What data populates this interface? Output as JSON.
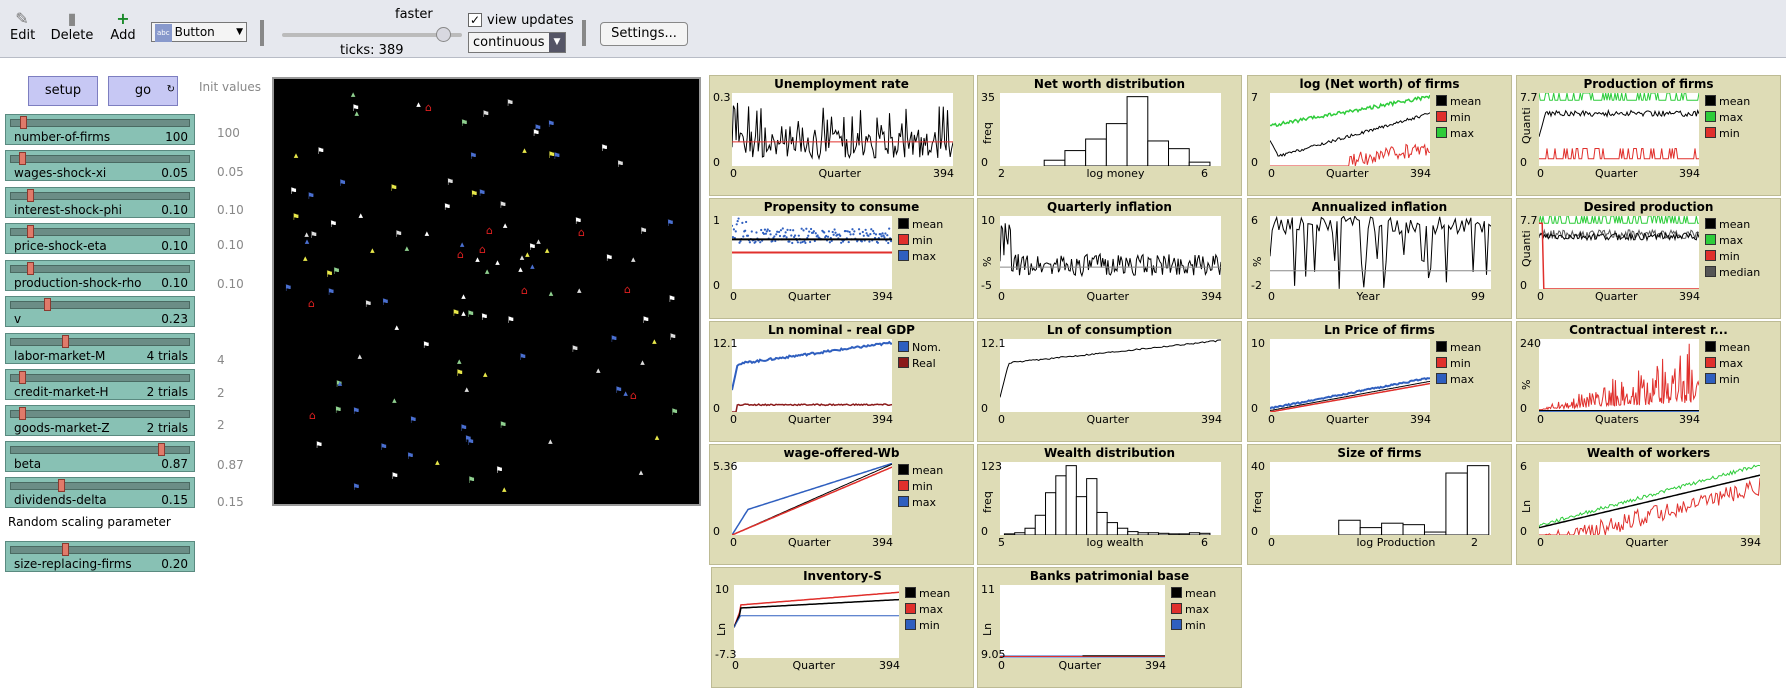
{
  "toolbar": {
    "edit_label": "Edit",
    "delete_label": "Delete",
    "add_label": "Add",
    "widget_type": "Button",
    "widget_type_icon_text": "abc",
    "speed_label": "faster",
    "ticks_label": "ticks: 389",
    "view_updates_label": "view updates",
    "view_updates_checked": "✓",
    "update_mode": "continuous",
    "settings_label": "Settings..."
  },
  "controls": {
    "setup_label": "setup",
    "go_label": "go",
    "init_values_header": "Init values",
    "random_scaling_label": "Random scaling parameter"
  },
  "sliders": [
    {
      "name": "number-of-firms",
      "value": "100",
      "init": "100",
      "pos": 0.06
    },
    {
      "name": "wages-shock-xi",
      "value": "0.05",
      "init": "0.05",
      "pos": 0.05
    },
    {
      "name": "interest-shock-phi",
      "value": "0.10",
      "init": "0.10",
      "pos": 0.1
    },
    {
      "name": "price-shock-eta",
      "value": "0.10",
      "init": "0.10",
      "pos": 0.1
    },
    {
      "name": "production-shock-rho",
      "value": "0.10",
      "init": "0.10",
      "pos": 0.1
    },
    {
      "name": "v",
      "value": "0.23",
      "init": "",
      "pos": 0.2
    },
    {
      "name": "labor-market-M",
      "value": "4 trials",
      "init": "4",
      "pos": 0.3
    },
    {
      "name": "credit-market-H",
      "value": "2 trials",
      "init": "2",
      "pos": 0.05
    },
    {
      "name": "goods-market-Z",
      "value": "2 trials",
      "init": "2",
      "pos": 0.05
    },
    {
      "name": "beta",
      "value": "0.87",
      "init": "0.87",
      "pos": 0.86
    },
    {
      "name": "dividends-delta",
      "value": "0.15",
      "init": "0.15",
      "pos": 0.28
    },
    {
      "name": "size-replacing-firms",
      "value": "0.20",
      "init": "",
      "pos": 0.3
    }
  ],
  "plots": [
    {
      "title": "Unemployment rate",
      "ylabel": "",
      "ymax": "0.3",
      "ymin": "0",
      "xmin": "0",
      "xlabel": "Quarter",
      "xmax": "394",
      "legend": [],
      "kind": "unemp"
    },
    {
      "title": "Net worth distribution",
      "ylabel": "freq",
      "ymax": "35",
      "ymin": "0",
      "xmin": "2",
      "xlabel": "log money",
      "xmax": "6",
      "legend": [],
      "kind": "hist1",
      "hist_values": [
        3,
        8,
        14,
        22,
        36,
        13,
        9,
        2
      ],
      "hist_max": 36
    },
    {
      "title": "log (Net worth) of firms",
      "ylabel": "",
      "ymax": "7",
      "ymin": "0",
      "xmin": "0",
      "xlabel": "Quarter",
      "xmax": "394",
      "legend": [
        {
          "name": "mean",
          "color": "#000000"
        },
        {
          "name": "min",
          "color": "#e0302c"
        },
        {
          "name": "max",
          "color": "#2ecc3a"
        }
      ],
      "kind": "networth"
    },
    {
      "title": "Production of firms",
      "ylabel": "Quanti",
      "ymax": "7.7",
      "ymin": "0",
      "xmin": "0",
      "xlabel": "Quarter",
      "xmax": "394",
      "legend": [
        {
          "name": "mean",
          "color": "#000000"
        },
        {
          "name": "max",
          "color": "#2ecc3a"
        },
        {
          "name": "min",
          "color": "#e0302c"
        }
      ],
      "kind": "production"
    },
    {
      "title": "Propensity to consume",
      "ylabel": "",
      "ymax": "1",
      "ymin": "0",
      "xmin": "0",
      "xlabel": "Quarter",
      "xmax": "394",
      "legend": [
        {
          "name": "mean",
          "color": "#000000"
        },
        {
          "name": "min",
          "color": "#e0302c"
        },
        {
          "name": "max",
          "color": "#2f5fbf"
        }
      ],
      "kind": "propensity"
    },
    {
      "title": "Quarterly inflation",
      "ylabel": "%",
      "ymax": "10",
      "ymin": "-5",
      "xmin": "0",
      "xlabel": "Quarter",
      "xmax": "394",
      "legend": [],
      "kind": "qinfl"
    },
    {
      "title": "Annualized inflation",
      "ylabel": "%",
      "ymax": "6",
      "ymin": "-2",
      "xmin": "0",
      "xlabel": "Year",
      "xmax": "99",
      "legend": [],
      "kind": "ainfl"
    },
    {
      "title": "Desired production",
      "ylabel": "Quanti",
      "ymax": "7.7",
      "ymin": "0",
      "xmin": "0",
      "xlabel": "Quarter",
      "xmax": "394",
      "legend": [
        {
          "name": "mean",
          "color": "#000000"
        },
        {
          "name": "max",
          "color": "#2ecc3a"
        },
        {
          "name": "min",
          "color": "#e0302c"
        },
        {
          "name": "median",
          "color": "#555555"
        }
      ],
      "kind": "desired"
    },
    {
      "title": "Ln nominal - real GDP",
      "ylabel": "",
      "ymax": "12.1",
      "ymin": "0",
      "xmin": "0",
      "xlabel": "Quarter",
      "xmax": "394",
      "legend": [
        {
          "name": "Nom.",
          "color": "#2f5fbf"
        },
        {
          "name": "Real",
          "color": "#8b1a1a"
        }
      ],
      "kind": "gdp"
    },
    {
      "title": "Ln of consumption",
      "ylabel": "",
      "ymax": "12.1",
      "ymin": "0",
      "xmin": "0",
      "xlabel": "Quarter",
      "xmax": "394",
      "legend": [],
      "kind": "consumption"
    },
    {
      "title": "Ln Price of firms",
      "ylabel": "",
      "ymax": "10",
      "ymin": "0",
      "xmin": "0",
      "xlabel": "Quarter",
      "xmax": "394",
      "legend": [
        {
          "name": "mean",
          "color": "#000000"
        },
        {
          "name": "min",
          "color": "#e0302c"
        },
        {
          "name": "max",
          "color": "#2f5fbf"
        }
      ],
      "kind": "price"
    },
    {
      "title": "Contractual interest r...",
      "ylabel": "%",
      "ymax": "240",
      "ymin": "0",
      "xmin": "0",
      "xlabel": "Quaters",
      "xmax": "394",
      "legend": [
        {
          "name": "mean",
          "color": "#000000"
        },
        {
          "name": "max",
          "color": "#e0302c"
        },
        {
          "name": "min",
          "color": "#2f5fbf"
        }
      ],
      "kind": "interest"
    },
    {
      "title": "wage-offered-Wb",
      "ylabel": "",
      "ymax": "5.36",
      "ymin": "0",
      "xmin": "0",
      "xlabel": "Quarter",
      "xmax": "394",
      "legend": [
        {
          "name": "mean",
          "color": "#000000"
        },
        {
          "name": "min",
          "color": "#e0302c"
        },
        {
          "name": "max",
          "color": "#2f5fbf"
        }
      ],
      "kind": "wage"
    },
    {
      "title": "Wealth distribution",
      "ylabel": "freq",
      "ymax": "123",
      "ymin": "0",
      "xmin": "5",
      "xlabel": "log wealth",
      "xmax": "6",
      "legend": [],
      "kind": "hist2",
      "hist_values": [
        2,
        4,
        12,
        35,
        75,
        105,
        123,
        68,
        100,
        40,
        22,
        12,
        6,
        4,
        4,
        3,
        2,
        2,
        4,
        3
      ],
      "hist_max": 123
    },
    {
      "title": "Size of firms",
      "ylabel": "freq",
      "ymax": "40",
      "ymin": "0",
      "xmin": "0",
      "xlabel": "log Production",
      "xmax": "2",
      "legend": [],
      "kind": "hist3",
      "hist_values": [
        0,
        0,
        0,
        10,
        5,
        8,
        7,
        2,
        42,
        47
      ],
      "hist_max": 47
    },
    {
      "title": "Wealth of workers",
      "ylabel": "Ln",
      "ymax": "6",
      "ymin": "0",
      "xmin": "0",
      "xlabel": "Quarter",
      "xmax": "394",
      "legend": [],
      "kind": "workers"
    },
    {
      "title": "Inventory-S",
      "ylabel": "Ln",
      "ymax": "10",
      "ymin": "-7.3",
      "xmin": "0",
      "xlabel": "Quarter",
      "xmax": "394",
      "legend": [
        {
          "name": "mean",
          "color": "#000000"
        },
        {
          "name": "max",
          "color": "#e0302c"
        },
        {
          "name": "min",
          "color": "#2f5fbf"
        }
      ],
      "kind": "inventory"
    },
    {
      "title": "Banks patrimonial base",
      "ylabel": "Ln",
      "ymax": "11",
      "ymin": "9.05",
      "xmin": "0",
      "xlabel": "Quarter",
      "xmax": "394",
      "legend": [
        {
          "name": "mean",
          "color": "#000000"
        },
        {
          "name": "max",
          "color": "#e0302c"
        },
        {
          "name": "min",
          "color": "#2f5fbf"
        }
      ],
      "kind": "banks"
    }
  ]
}
